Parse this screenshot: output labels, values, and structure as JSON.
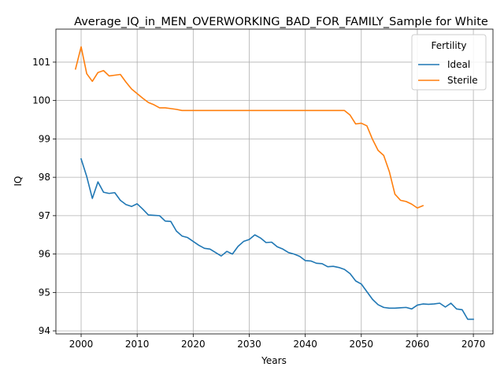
{
  "chart_data": {
    "type": "line",
    "title": "Average_IQ_in_MEN_OVERWORKING_BAD_FOR_FAMILY_Sample for White",
    "xlabel": "Years",
    "ylabel": "IQ",
    "xlim": [
      1995.5,
      2073.5
    ],
    "ylim": [
      93.92,
      101.86
    ],
    "xticks": [
      2000,
      2010,
      2020,
      2030,
      2040,
      2050,
      2060,
      2070
    ],
    "yticks": [
      94,
      95,
      96,
      97,
      98,
      99,
      100,
      101
    ],
    "grid": true,
    "legend": {
      "title": "Fertility",
      "placement": "top-right"
    },
    "series": [
      {
        "name": "Ideal",
        "color": "#1f77b4",
        "x": [
          2000,
          2001,
          2002,
          2003,
          2004,
          2005,
          2006,
          2007,
          2008,
          2009,
          2010,
          2011,
          2012,
          2013,
          2014,
          2015,
          2016,
          2017,
          2018,
          2019,
          2020,
          2021,
          2022,
          2023,
          2024,
          2025,
          2026,
          2027,
          2028,
          2029,
          2030,
          2031,
          2032,
          2033,
          2034,
          2035,
          2036,
          2037,
          2038,
          2039,
          2040,
          2041,
          2042,
          2043,
          2044,
          2045,
          2046,
          2047,
          2048,
          2049,
          2050,
          2051,
          2052,
          2053,
          2054,
          2055,
          2056,
          2057,
          2058,
          2059,
          2060,
          2061,
          2062,
          2063,
          2064,
          2065,
          2066,
          2067,
          2068,
          2069,
          2070
        ],
        "values": [
          98.48,
          98.02,
          97.45,
          97.88,
          97.61,
          97.58,
          97.6,
          97.4,
          97.29,
          97.24,
          97.31,
          97.17,
          97.02,
          97.01,
          97.0,
          96.86,
          96.85,
          96.6,
          96.47,
          96.43,
          96.33,
          96.23,
          96.15,
          96.13,
          96.04,
          95.95,
          96.07,
          96.0,
          96.2,
          96.33,
          96.38,
          96.5,
          96.42,
          96.3,
          96.31,
          96.19,
          96.13,
          96.04,
          96.0,
          95.94,
          95.83,
          95.82,
          95.76,
          95.75,
          95.67,
          95.68,
          95.65,
          95.6,
          95.49,
          95.3,
          95.22,
          95.02,
          94.82,
          94.68,
          94.61,
          94.59,
          94.59,
          94.6,
          94.61,
          94.57,
          94.67,
          94.7,
          94.69,
          94.7,
          94.72,
          94.62,
          94.72,
          94.57,
          94.55,
          94.3,
          94.3
        ]
      },
      {
        "name": "Sterile",
        "color": "#ff7f0e",
        "x": [
          1999,
          2000,
          2001,
          2002,
          2003,
          2004,
          2005,
          2006,
          2007,
          2008,
          2009,
          2010,
          2011,
          2012,
          2013,
          2014,
          2015,
          2016,
          2017,
          2018,
          2019,
          2020,
          2021,
          2022,
          2023,
          2024,
          2025,
          2026,
          2027,
          2028,
          2029,
          2030,
          2031,
          2032,
          2033,
          2034,
          2035,
          2036,
          2037,
          2038,
          2039,
          2040,
          2041,
          2042,
          2043,
          2044,
          2045,
          2046,
          2047,
          2048,
          2049,
          2050,
          2051,
          2052,
          2053,
          2054,
          2055,
          2056,
          2057,
          2058,
          2059,
          2060,
          2061
        ],
        "values": [
          100.82,
          101.4,
          100.7,
          100.5,
          100.73,
          100.78,
          100.64,
          100.66,
          100.68,
          100.48,
          100.3,
          100.18,
          100.06,
          99.95,
          99.89,
          99.81,
          99.81,
          99.79,
          99.77,
          99.74,
          99.74,
          99.74,
          99.74,
          99.74,
          99.74,
          99.74,
          99.74,
          99.74,
          99.74,
          99.74,
          99.74,
          99.74,
          99.74,
          99.74,
          99.74,
          99.74,
          99.74,
          99.74,
          99.74,
          99.74,
          99.74,
          99.74,
          99.74,
          99.74,
          99.74,
          99.74,
          99.74,
          99.74,
          99.74,
          99.62,
          99.39,
          99.41,
          99.34,
          98.99,
          98.7,
          98.57,
          98.15,
          97.56,
          97.4,
          97.37,
          97.3,
          97.2,
          97.26
        ]
      }
    ]
  }
}
